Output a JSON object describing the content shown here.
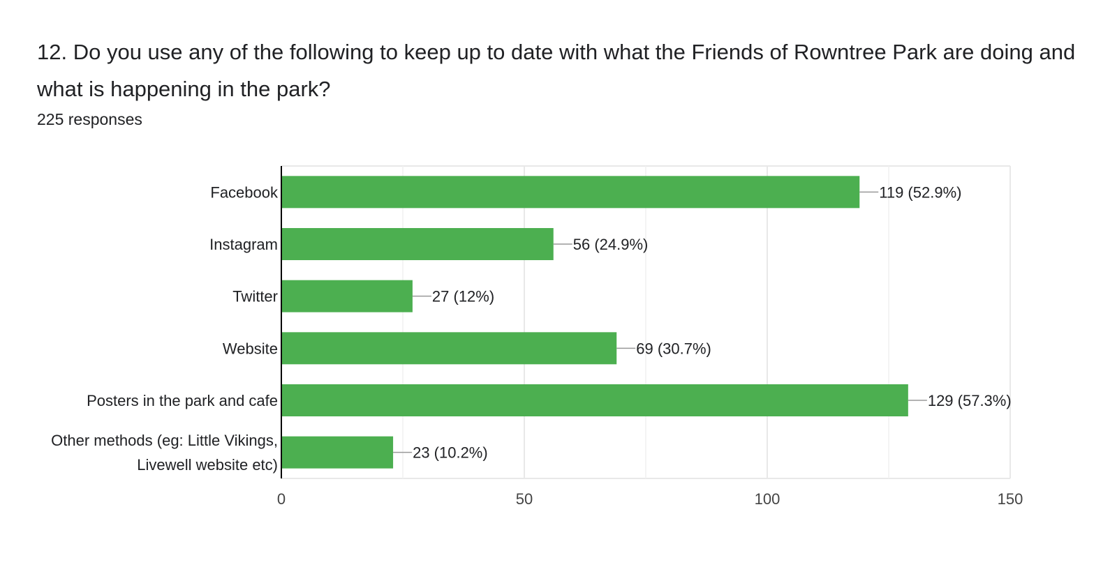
{
  "question": {
    "title": "12. Do you use any of the following to keep up to date with what the Friends of Rowntree Park are doing and what is happening in the park?",
    "responses": "225 responses"
  },
  "colors": {
    "bar": "#4caf50",
    "grid": "#e8e8e8",
    "axis": "#000000",
    "leader": "#999999"
  },
  "chart_data": {
    "type": "bar",
    "orientation": "horizontal",
    "categories": [
      [
        "Facebook"
      ],
      [
        "Instagram"
      ],
      [
        "Twitter"
      ],
      [
        "Website"
      ],
      [
        "Posters in the park and cafe"
      ],
      [
        "Other methods (eg: Little Vikings,",
        "Livewell website etc)"
      ]
    ],
    "values": [
      119,
      56,
      27,
      69,
      129,
      23
    ],
    "data_labels": [
      "119 (52.9%)",
      "56 (24.9%)",
      "27 (12%)",
      "69 (30.7%)",
      "129 (57.3%)",
      "23 (10.2%)"
    ],
    "xlim": [
      0,
      150
    ],
    "xticks": [
      0,
      50,
      100,
      150
    ],
    "minor_gridlines": [
      25,
      75,
      125
    ],
    "grid": true,
    "legend": "none"
  }
}
